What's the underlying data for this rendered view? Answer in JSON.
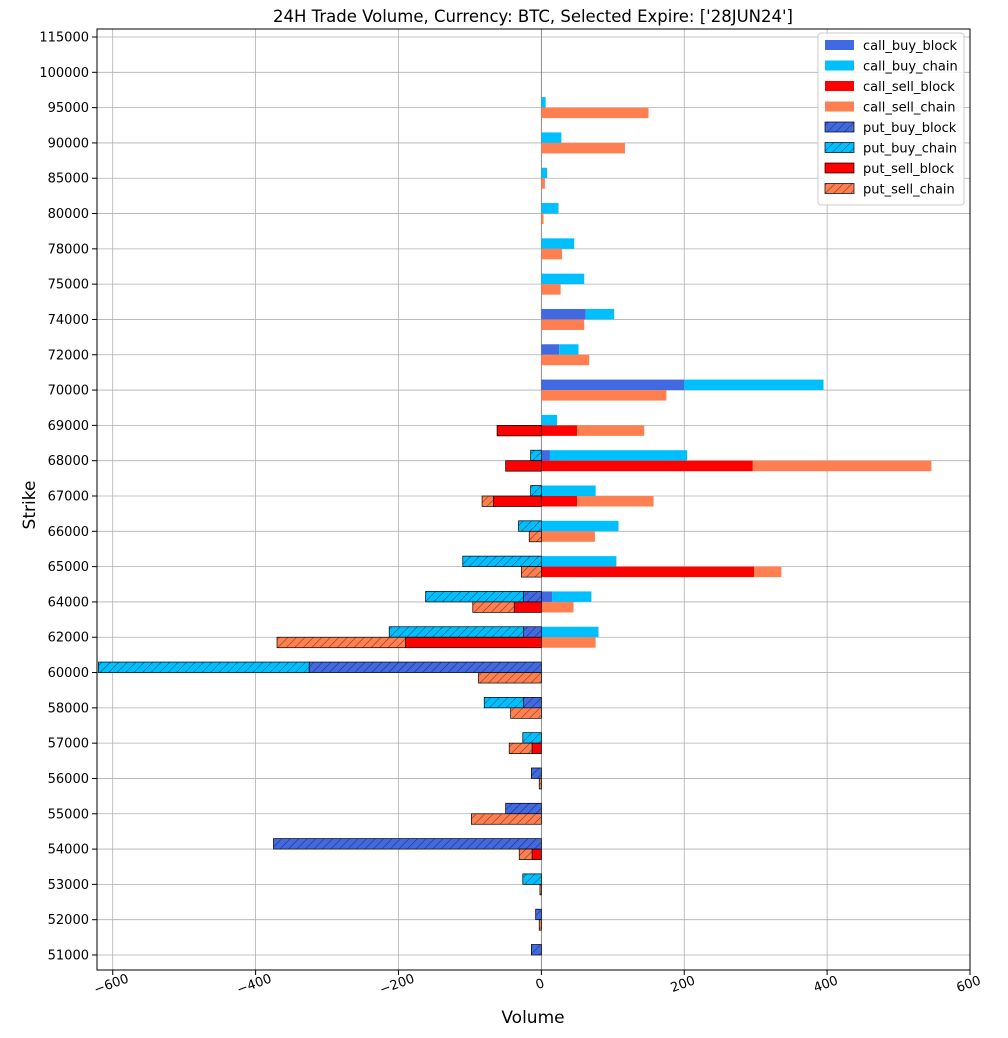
{
  "chart_data": {
    "type": "bar",
    "orientation": "horizontal",
    "title": "24H Trade Volume, Currency: BTC, Selected Expire: ['28JUN24']",
    "xlabel": "Volume",
    "ylabel": "Strike",
    "xlim": [
      -622,
      600
    ],
    "xticks": [
      -600,
      -400,
      -200,
      0,
      200,
      400,
      600
    ],
    "xtick_labels": [
      "−600",
      "−400",
      "−200",
      "0",
      "200",
      "400",
      "600"
    ],
    "grid": true,
    "legend_position": "top-right",
    "categories": [
      "51000",
      "52000",
      "53000",
      "54000",
      "55000",
      "56000",
      "57000",
      "58000",
      "60000",
      "62000",
      "64000",
      "65000",
      "66000",
      "67000",
      "68000",
      "69000",
      "70000",
      "72000",
      "74000",
      "75000",
      "78000",
      "80000",
      "85000",
      "90000",
      "95000",
      "100000",
      "115000"
    ],
    "series": [
      {
        "name": "call_buy_block",
        "side": "call",
        "row": "upper",
        "stack_group": "buy",
        "color": "#4169e1",
        "hatch": false,
        "values": [
          0,
          0,
          0,
          0,
          0,
          0,
          0,
          0,
          0,
          0,
          15,
          0,
          0,
          0,
          12,
          0,
          200,
          25,
          62,
          0,
          0,
          0,
          0,
          0,
          0,
          0,
          0
        ]
      },
      {
        "name": "call_buy_chain",
        "side": "call",
        "row": "upper",
        "stack_group": "buy",
        "color": "#00bfff",
        "hatch": false,
        "values": [
          0,
          0,
          0,
          0,
          0,
          0,
          0,
          0,
          0,
          80,
          55,
          105,
          108,
          76,
          192,
          22,
          195,
          27,
          40,
          60,
          46,
          24,
          8,
          28,
          6,
          0,
          0
        ]
      },
      {
        "name": "call_sell_block",
        "side": "call",
        "row": "lower",
        "stack_group": "sell",
        "color": "#ff0000",
        "hatch": false,
        "values": [
          0,
          0,
          0,
          0,
          0,
          0,
          0,
          0,
          0,
          0,
          0,
          298,
          0,
          50,
          296,
          50,
          0,
          0,
          0,
          0,
          0,
          0,
          0,
          0,
          0,
          0,
          0
        ]
      },
      {
        "name": "call_sell_chain",
        "side": "call",
        "row": "lower",
        "stack_group": "sell",
        "color": "#ff7f50",
        "hatch": false,
        "values": [
          0,
          0,
          0,
          0,
          0,
          0,
          0,
          0,
          0,
          76,
          45,
          38,
          75,
          107,
          250,
          94,
          175,
          67,
          60,
          27,
          29,
          3,
          5,
          117,
          150,
          0,
          0
        ]
      },
      {
        "name": "put_buy_block",
        "side": "put",
        "row": "upper",
        "stack_group": "buy",
        "color": "#4169e1",
        "hatch": true,
        "values": [
          -14,
          -8,
          0,
          -375,
          -50,
          -14,
          0,
          -25,
          -325,
          -25,
          -25,
          0,
          0,
          0,
          0,
          0,
          0,
          0,
          0,
          0,
          0,
          0,
          0,
          0,
          0,
          0,
          0
        ]
      },
      {
        "name": "put_buy_chain",
        "side": "put",
        "row": "upper",
        "stack_group": "buy",
        "color": "#00bfff",
        "hatch": true,
        "values": [
          0,
          0,
          -26,
          0,
          0,
          0,
          -26,
          -55,
          -295,
          -188,
          -137,
          -110,
          -32,
          -15,
          -15,
          0,
          0,
          0,
          0,
          0,
          0,
          0,
          0,
          0,
          0,
          0,
          0
        ]
      },
      {
        "name": "put_sell_block",
        "side": "put",
        "row": "lower",
        "stack_group": "sell",
        "color": "#ff0000",
        "hatch": false,
        "values": [
          0,
          0,
          0,
          -13,
          0,
          0,
          -13,
          0,
          0,
          -190,
          -38,
          0,
          0,
          -67,
          -50,
          -62,
          0,
          0,
          0,
          0,
          0,
          0,
          0,
          0,
          0,
          0,
          0
        ]
      },
      {
        "name": "put_sell_chain",
        "side": "put",
        "row": "lower",
        "stack_group": "sell",
        "color": "#ff7f50",
        "hatch": true,
        "values": [
          0,
          -3,
          -2,
          -18,
          -98,
          -3,
          -32,
          -43,
          -88,
          -180,
          -58,
          -28,
          -17,
          -16,
          0,
          0,
          0,
          0,
          0,
          0,
          0,
          0,
          0,
          0,
          0,
          0,
          0
        ]
      }
    ]
  }
}
